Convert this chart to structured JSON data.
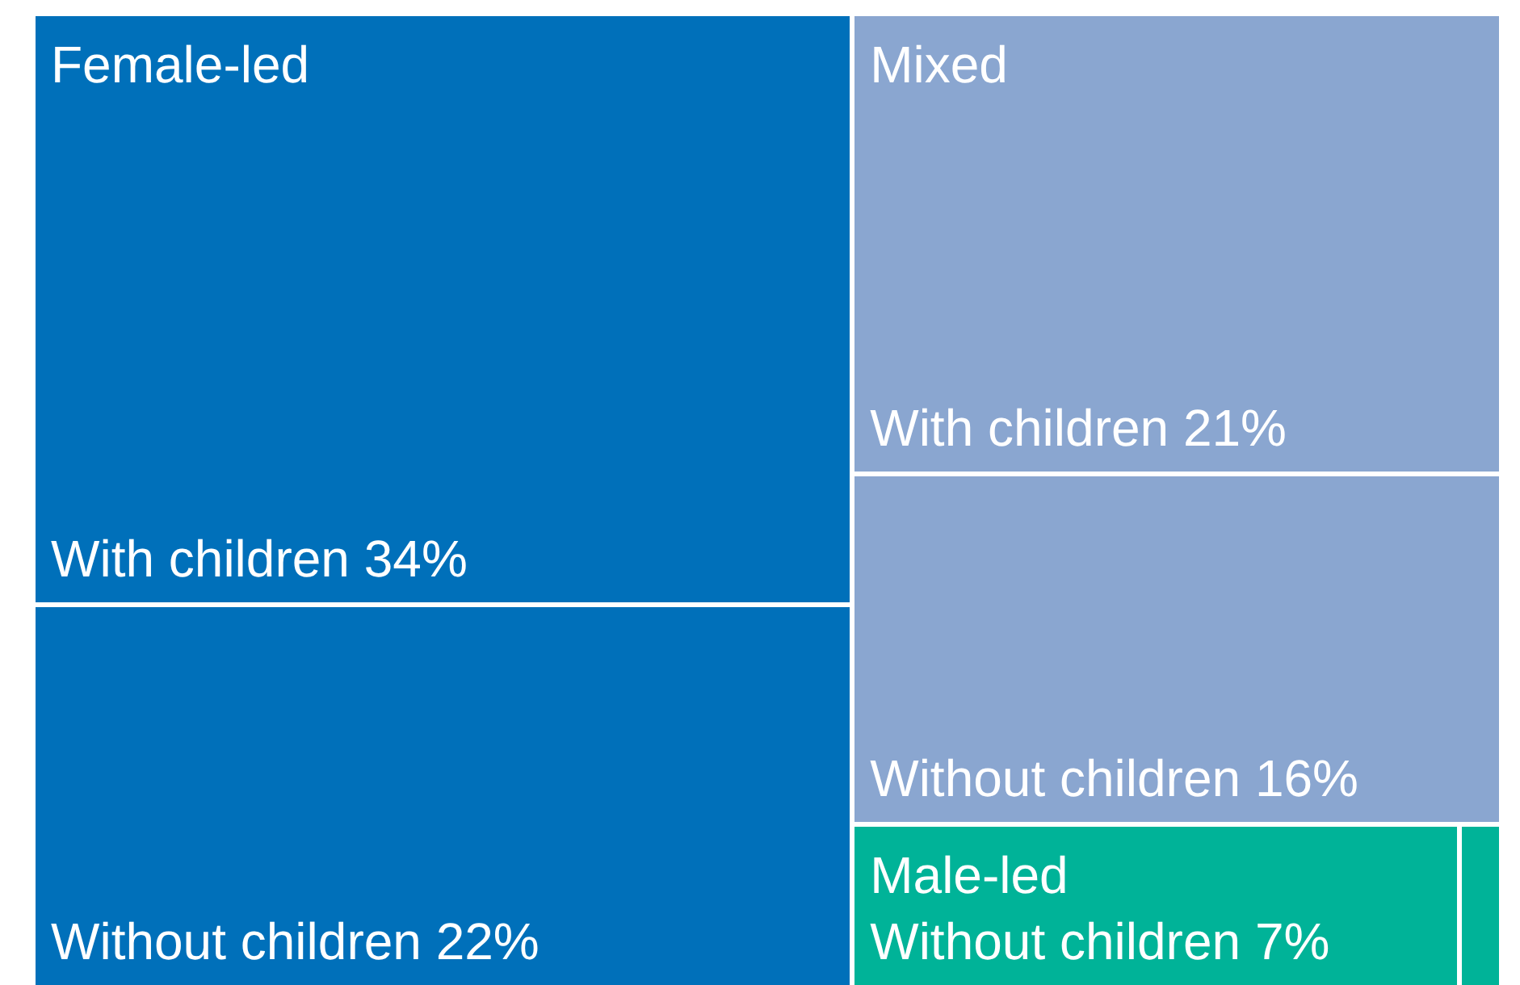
{
  "chart_data": {
    "type": "other",
    "categories": [
      "With children",
      "Without children"
    ],
    "series": [
      {
        "name": "Female-led",
        "color": "#0070ba",
        "values": [
          34,
          22
        ],
        "value_labels": [
          "34%",
          "22%"
        ]
      },
      {
        "name": "Mixed",
        "color": "#8aa6d0",
        "values": [
          21,
          16
        ],
        "value_labels": [
          "21%",
          "16%"
        ]
      },
      {
        "name": "Male-led",
        "color": "#00b398",
        "values": [
          null,
          7
        ],
        "value_labels": [
          null,
          "7%"
        ]
      }
    ]
  }
}
